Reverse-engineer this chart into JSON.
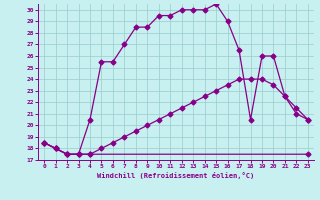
{
  "xlabel": "Windchill (Refroidissement éolien,°C)",
  "xlim": [
    -0.5,
    23.5
  ],
  "ylim": [
    17,
    30.5
  ],
  "yticks": [
    17,
    18,
    19,
    20,
    21,
    22,
    23,
    24,
    25,
    26,
    27,
    28,
    29,
    30
  ],
  "xticks": [
    0,
    1,
    2,
    3,
    4,
    5,
    6,
    7,
    8,
    9,
    10,
    11,
    12,
    13,
    14,
    15,
    16,
    17,
    18,
    19,
    20,
    21,
    22,
    23
  ],
  "bg_color": "#c8f0f0",
  "line_color": "#880088",
  "grid_color": "#99cccc",
  "line1_x": [
    0,
    1,
    2,
    3,
    4,
    23
  ],
  "line1_y": [
    18.5,
    18.0,
    17.5,
    17.5,
    17.5,
    17.5
  ],
  "line2_x": [
    0,
    1,
    2,
    3,
    4,
    5,
    6,
    7,
    8,
    9,
    10,
    11,
    12,
    13,
    14,
    15,
    16,
    17,
    18,
    19,
    20,
    21,
    22,
    23
  ],
  "line2_y": [
    18.5,
    18.0,
    17.5,
    17.5,
    17.5,
    18.0,
    18.5,
    19.0,
    19.5,
    20.0,
    20.5,
    21.0,
    21.5,
    22.0,
    22.5,
    23.0,
    23.5,
    24.0,
    24.0,
    24.0,
    23.5,
    22.5,
    21.5,
    20.5
  ],
  "line3_x": [
    0,
    1,
    2,
    3,
    4,
    5,
    6,
    7,
    8,
    9,
    10,
    11,
    12,
    13,
    14,
    15,
    16,
    17,
    18,
    19,
    20,
    21,
    22,
    23
  ],
  "line3_y": [
    18.5,
    18.0,
    17.5,
    17.5,
    20.5,
    25.5,
    25.5,
    27.0,
    28.5,
    28.5,
    29.5,
    29.5,
    30.0,
    30.0,
    30.0,
    30.5,
    29.0,
    26.5,
    20.5,
    26.0,
    26.0,
    22.5,
    21.0,
    20.5
  ]
}
